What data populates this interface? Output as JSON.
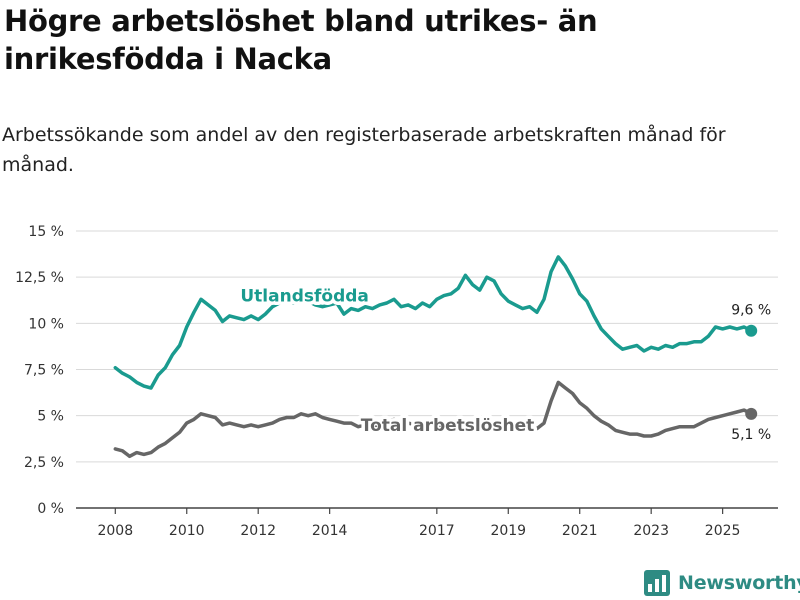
{
  "title": "Högre arbetslöshet bland utrikes- än inrikesfödda i Nacka",
  "subtitle": "Arbetssökande som andel av den registerbaserade arbetskraften månad för månad.",
  "brand": "Newsworthy",
  "colors": {
    "utlandsfodda": "#1a9b8f",
    "total": "#666666",
    "grid": "#d9d9d9",
    "axis": "#444444",
    "text": "#333333"
  },
  "chart_data": {
    "type": "line",
    "title": "Högre arbetslöshet bland utrikes- än inrikesfödda i Nacka",
    "subtitle": "Arbetssökande som andel av den registerbaserade arbetskraften månad för månad.",
    "xlabel": "",
    "ylabel": "",
    "x_range": [
      2006.9,
      2026.55
    ],
    "ylim": [
      0,
      15
    ],
    "y_ticks": [
      {
        "value": 0,
        "label": "0 %"
      },
      {
        "value": 2.5,
        "label": "2,5 %"
      },
      {
        "value": 5,
        "label": "5 %"
      },
      {
        "value": 7.5,
        "label": "7,5 %"
      },
      {
        "value": 10,
        "label": "10 %"
      },
      {
        "value": 12.5,
        "label": "12,5 %"
      },
      {
        "value": 15,
        "label": "15 %"
      }
    ],
    "x_ticks": [
      {
        "value": 2008,
        "label": "2008"
      },
      {
        "value": 2010,
        "label": "2010"
      },
      {
        "value": 2012,
        "label": "2012"
      },
      {
        "value": 2014,
        "label": "2014"
      },
      {
        "value": 2017,
        "label": "2017"
      },
      {
        "value": 2019,
        "label": "2019"
      },
      {
        "value": 2021,
        "label": "2021"
      },
      {
        "value": 2023,
        "label": "2023"
      },
      {
        "value": 2025,
        "label": "2025"
      }
    ],
    "grid": true,
    "series": [
      {
        "name": "Utlandsfödda",
        "label": "Utlandsfödda",
        "label_x": 2013.3,
        "label_y": 11.5,
        "end_label": "9,6 %",
        "points": [
          [
            2008.0,
            7.6
          ],
          [
            2008.2,
            7.3
          ],
          [
            2008.4,
            7.1
          ],
          [
            2008.6,
            6.8
          ],
          [
            2008.8,
            6.6
          ],
          [
            2009.0,
            6.5
          ],
          [
            2009.2,
            7.2
          ],
          [
            2009.4,
            7.6
          ],
          [
            2009.6,
            8.3
          ],
          [
            2009.8,
            8.8
          ],
          [
            2010.0,
            9.8
          ],
          [
            2010.2,
            10.6
          ],
          [
            2010.4,
            11.3
          ],
          [
            2010.6,
            11.0
          ],
          [
            2010.8,
            10.7
          ],
          [
            2011.0,
            10.1
          ],
          [
            2011.2,
            10.4
          ],
          [
            2011.4,
            10.3
          ],
          [
            2011.6,
            10.2
          ],
          [
            2011.8,
            10.4
          ],
          [
            2012.0,
            10.2
          ],
          [
            2012.2,
            10.5
          ],
          [
            2012.4,
            10.9
          ],
          [
            2012.6,
            11.1
          ],
          [
            2012.8,
            11.2
          ],
          [
            2013.0,
            11.1
          ],
          [
            2013.2,
            11.3
          ],
          [
            2013.4,
            11.2
          ],
          [
            2013.6,
            11.0
          ],
          [
            2013.8,
            10.9
          ],
          [
            2014.0,
            11.0
          ],
          [
            2014.2,
            11.1
          ],
          [
            2014.4,
            10.5
          ],
          [
            2014.6,
            10.8
          ],
          [
            2014.8,
            10.7
          ],
          [
            2015.0,
            10.9
          ],
          [
            2015.2,
            10.8
          ],
          [
            2015.4,
            11.0
          ],
          [
            2015.6,
            11.1
          ],
          [
            2015.8,
            11.3
          ],
          [
            2016.0,
            10.9
          ],
          [
            2016.2,
            11.0
          ],
          [
            2016.4,
            10.8
          ],
          [
            2016.6,
            11.1
          ],
          [
            2016.8,
            10.9
          ],
          [
            2017.0,
            11.3
          ],
          [
            2017.2,
            11.5
          ],
          [
            2017.4,
            11.6
          ],
          [
            2017.6,
            11.9
          ],
          [
            2017.8,
            12.6
          ],
          [
            2018.0,
            12.1
          ],
          [
            2018.2,
            11.8
          ],
          [
            2018.4,
            12.5
          ],
          [
            2018.6,
            12.3
          ],
          [
            2018.8,
            11.6
          ],
          [
            2019.0,
            11.2
          ],
          [
            2019.2,
            11.0
          ],
          [
            2019.4,
            10.8
          ],
          [
            2019.6,
            10.9
          ],
          [
            2019.8,
            10.6
          ],
          [
            2020.0,
            11.3
          ],
          [
            2020.2,
            12.8
          ],
          [
            2020.4,
            13.6
          ],
          [
            2020.6,
            13.1
          ],
          [
            2020.8,
            12.4
          ],
          [
            2021.0,
            11.6
          ],
          [
            2021.2,
            11.2
          ],
          [
            2021.4,
            10.4
          ],
          [
            2021.6,
            9.7
          ],
          [
            2021.8,
            9.3
          ],
          [
            2022.0,
            8.9
          ],
          [
            2022.2,
            8.6
          ],
          [
            2022.4,
            8.7
          ],
          [
            2022.6,
            8.8
          ],
          [
            2022.8,
            8.5
          ],
          [
            2023.0,
            8.7
          ],
          [
            2023.2,
            8.6
          ],
          [
            2023.4,
            8.8
          ],
          [
            2023.6,
            8.7
          ],
          [
            2023.8,
            8.9
          ],
          [
            2024.0,
            8.9
          ],
          [
            2024.2,
            9.0
          ],
          [
            2024.4,
            9.0
          ],
          [
            2024.6,
            9.3
          ],
          [
            2024.8,
            9.8
          ],
          [
            2025.0,
            9.7
          ],
          [
            2025.2,
            9.8
          ],
          [
            2025.4,
            9.7
          ],
          [
            2025.6,
            9.8
          ],
          [
            2025.8,
            9.6
          ]
        ]
      },
      {
        "name": "Total arbetslöshet",
        "label": "Total arbetslöshet",
        "label_x": 2017.3,
        "label_y": 4.5,
        "end_label": "5,1 %",
        "points": [
          [
            2008.0,
            3.2
          ],
          [
            2008.2,
            3.1
          ],
          [
            2008.4,
            2.8
          ],
          [
            2008.6,
            3.0
          ],
          [
            2008.8,
            2.9
          ],
          [
            2009.0,
            3.0
          ],
          [
            2009.2,
            3.3
          ],
          [
            2009.4,
            3.5
          ],
          [
            2009.6,
            3.8
          ],
          [
            2009.8,
            4.1
          ],
          [
            2010.0,
            4.6
          ],
          [
            2010.2,
            4.8
          ],
          [
            2010.4,
            5.1
          ],
          [
            2010.6,
            5.0
          ],
          [
            2010.8,
            4.9
          ],
          [
            2011.0,
            4.5
          ],
          [
            2011.2,
            4.6
          ],
          [
            2011.4,
            4.5
          ],
          [
            2011.6,
            4.4
          ],
          [
            2011.8,
            4.5
          ],
          [
            2012.0,
            4.4
          ],
          [
            2012.2,
            4.5
          ],
          [
            2012.4,
            4.6
          ],
          [
            2012.6,
            4.8
          ],
          [
            2012.8,
            4.9
          ],
          [
            2013.0,
            4.9
          ],
          [
            2013.2,
            5.1
          ],
          [
            2013.4,
            5.0
          ],
          [
            2013.6,
            5.1
          ],
          [
            2013.8,
            4.9
          ],
          [
            2014.0,
            4.8
          ],
          [
            2014.2,
            4.7
          ],
          [
            2014.4,
            4.6
          ],
          [
            2014.6,
            4.6
          ],
          [
            2014.8,
            4.4
          ],
          [
            2015.0,
            4.5
          ],
          [
            2015.2,
            4.4
          ],
          [
            2015.4,
            4.5
          ],
          [
            2015.6,
            4.7
          ],
          [
            2015.8,
            4.8
          ],
          [
            2016.0,
            4.6
          ],
          [
            2016.2,
            4.6
          ],
          [
            2016.4,
            4.5
          ],
          [
            2016.6,
            4.4
          ],
          [
            2016.8,
            4.4
          ],
          [
            2017.0,
            4.4
          ],
          [
            2017.2,
            4.5
          ],
          [
            2017.4,
            4.5
          ],
          [
            2017.6,
            4.6
          ],
          [
            2017.8,
            4.7
          ],
          [
            2018.0,
            4.6
          ],
          [
            2018.2,
            4.5
          ],
          [
            2018.4,
            4.7
          ],
          [
            2018.6,
            4.6
          ],
          [
            2018.8,
            4.5
          ],
          [
            2019.0,
            4.5
          ],
          [
            2019.2,
            4.4
          ],
          [
            2019.4,
            4.3
          ],
          [
            2019.6,
            4.4
          ],
          [
            2019.8,
            4.3
          ],
          [
            2020.0,
            4.6
          ],
          [
            2020.2,
            5.8
          ],
          [
            2020.4,
            6.8
          ],
          [
            2020.6,
            6.5
          ],
          [
            2020.8,
            6.2
          ],
          [
            2021.0,
            5.7
          ],
          [
            2021.2,
            5.4
          ],
          [
            2021.4,
            5.0
          ],
          [
            2021.6,
            4.7
          ],
          [
            2021.8,
            4.5
          ],
          [
            2022.0,
            4.2
          ],
          [
            2022.2,
            4.1
          ],
          [
            2022.4,
            4.0
          ],
          [
            2022.6,
            4.0
          ],
          [
            2022.8,
            3.9
          ],
          [
            2023.0,
            3.9
          ],
          [
            2023.2,
            4.0
          ],
          [
            2023.4,
            4.2
          ],
          [
            2023.6,
            4.3
          ],
          [
            2023.8,
            4.4
          ],
          [
            2024.0,
            4.4
          ],
          [
            2024.2,
            4.4
          ],
          [
            2024.4,
            4.6
          ],
          [
            2024.6,
            4.8
          ],
          [
            2024.8,
            4.9
          ],
          [
            2025.0,
            5.0
          ],
          [
            2025.2,
            5.1
          ],
          [
            2025.4,
            5.2
          ],
          [
            2025.6,
            5.3
          ],
          [
            2025.8,
            5.1
          ]
        ]
      }
    ]
  }
}
